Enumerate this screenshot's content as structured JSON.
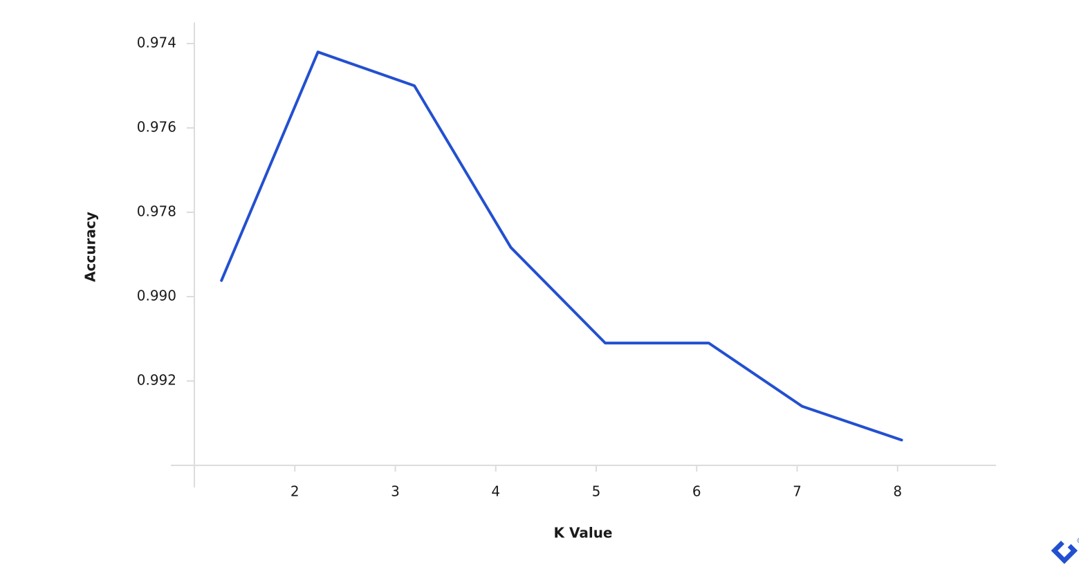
{
  "chart_data": {
    "type": "line",
    "x_label": "K Value",
    "y_label": "Accuracy",
    "x": [
      1.27,
      2.23,
      3.19,
      4.15,
      5.09,
      6.12,
      7.05,
      8.04
    ],
    "series": [
      {
        "color": "#2350d0",
        "values": [
          0.9877,
          0.9742,
          0.975,
          0.983,
          0.9911,
          0.9911,
          0.9926,
          0.9934
        ]
      }
    ],
    "xlim": [
      1,
      9
    ],
    "xticks": [
      2,
      3,
      4,
      5,
      6,
      7,
      8
    ],
    "ylim": [
      0.9735,
      0.994
    ],
    "invert_y": true,
    "yticks": [
      0.974,
      0.976,
      0.978,
      {
        "value": 0.99,
        "label": "0.990"
      },
      0.992
    ]
  }
}
